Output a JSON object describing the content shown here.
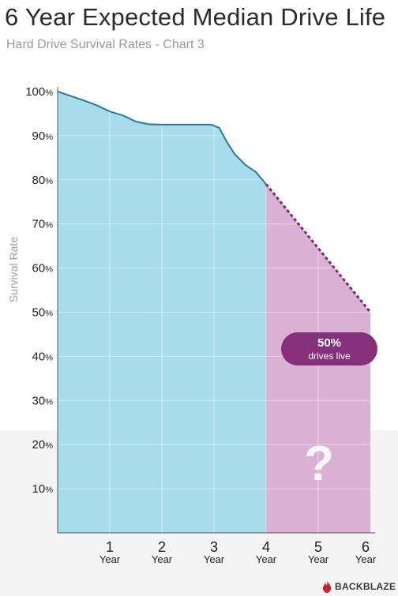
{
  "title": "6 Year Expected Median Drive Life",
  "subtitle": "Hard Drive Survival Rates - Chart 3",
  "callout": {
    "value": "50%",
    "label": "drives live"
  },
  "unknown_mark": "?",
  "brand": {
    "name": "BACKBLAZE",
    "logo_icon": "flame-icon",
    "logo_color": "#c8202f"
  },
  "colors": {
    "observed_fill": "#a8dced",
    "observed_line": "#1f7f9a",
    "projected_fill": "#dab0d4",
    "projected_line": "#7b2d73",
    "callout_bg": "#86307c"
  },
  "chart_data": {
    "type": "area",
    "title": "6 Year Expected Median Drive Life",
    "subtitle": "Hard Drive Survival Rates - Chart 3",
    "xlabel": "",
    "ylabel": "Survival Rate",
    "xlim": [
      0,
      6
    ],
    "ylim": [
      0,
      100
    ],
    "grid": true,
    "x_ticks": [
      {
        "value": 1,
        "num": "1",
        "unit": "Year"
      },
      {
        "value": 2,
        "num": "2",
        "unit": "Year"
      },
      {
        "value": 3,
        "num": "3",
        "unit": "Year"
      },
      {
        "value": 4,
        "num": "4",
        "unit": "Year"
      },
      {
        "value": 5,
        "num": "5",
        "unit": "Year"
      },
      {
        "value": 6,
        "num": "6",
        "unit": "Year"
      }
    ],
    "y_ticks": [
      {
        "value": 10,
        "num": "10",
        "unit": "%"
      },
      {
        "value": 20,
        "num": "20",
        "unit": "%"
      },
      {
        "value": 30,
        "num": "30",
        "unit": "%"
      },
      {
        "value": 40,
        "num": "40",
        "unit": "%"
      },
      {
        "value": 50,
        "num": "50",
        "unit": "%"
      },
      {
        "value": 60,
        "num": "60",
        "unit": "%"
      },
      {
        "value": 70,
        "num": "70",
        "unit": "%"
      },
      {
        "value": 80,
        "num": "80",
        "unit": "%"
      },
      {
        "value": 90,
        "num": "90",
        "unit": "%"
      },
      {
        "value": 100,
        "num": "100",
        "unit": "%"
      }
    ],
    "series": [
      {
        "style": "solid",
        "x": [
          0,
          0.25,
          0.5,
          0.75,
          1.0,
          1.25,
          1.5,
          1.75,
          2.0,
          2.25,
          2.5,
          2.75,
          2.95,
          3.1,
          3.25,
          3.4,
          3.6,
          3.8,
          4.0
        ],
        "y": [
          100,
          99,
          98,
          96.9,
          95.5,
          94.6,
          93.2,
          92.6,
          92.5,
          92.5,
          92.5,
          92.5,
          92.5,
          91.8,
          88.5,
          85.8,
          83.4,
          81.8,
          79
        ]
      },
      {
        "style": "dotted",
        "x": [
          4.0,
          6.0
        ],
        "y": [
          79,
          50
        ]
      }
    ]
  }
}
